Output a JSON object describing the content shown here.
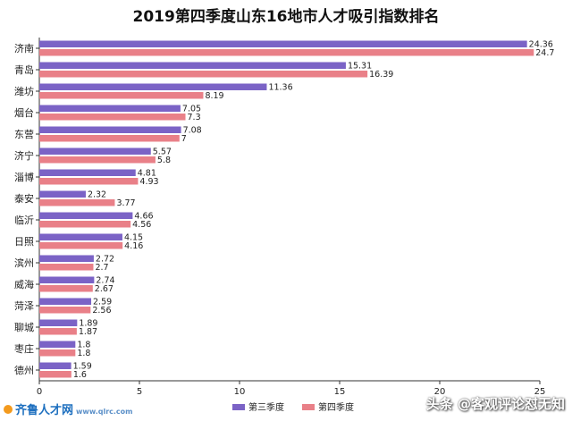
{
  "chart_data": {
    "type": "bar",
    "orientation": "horizontal",
    "title": "2019第四季度山东16地市人才吸引指数排名",
    "categories": [
      "济南",
      "青岛",
      "潍坊",
      "烟台",
      "东营",
      "济宁",
      "淄博",
      "泰安",
      "临沂",
      "日照",
      "滨州",
      "威海",
      "菏泽",
      "聊城",
      "枣庄",
      "德州"
    ],
    "series": [
      {
        "name": "第三季度",
        "color": "#7b63c6",
        "values": [
          24.36,
          15.31,
          11.36,
          7.05,
          7.08,
          5.57,
          4.81,
          2.32,
          4.66,
          4.15,
          2.72,
          2.74,
          2.59,
          1.89,
          1.8,
          1.59
        ]
      },
      {
        "name": "第四季度",
        "color": "#e98088",
        "values": [
          24.7,
          16.39,
          8.19,
          7.3,
          7,
          5.8,
          4.93,
          3.77,
          4.56,
          4.16,
          2.7,
          2.67,
          2.56,
          1.87,
          1.8,
          1.6
        ]
      }
    ],
    "xlim": [
      0,
      25
    ],
    "xticks": [
      0,
      5,
      10,
      15,
      20,
      25
    ],
    "grid": false,
    "legend_position": "bottom-right"
  },
  "watermark_left": {
    "brand": "齐鲁人才",
    "suffix": "网",
    "site": "www.qlrc.com"
  },
  "watermark_right": "头条 @客观评论怼无知"
}
